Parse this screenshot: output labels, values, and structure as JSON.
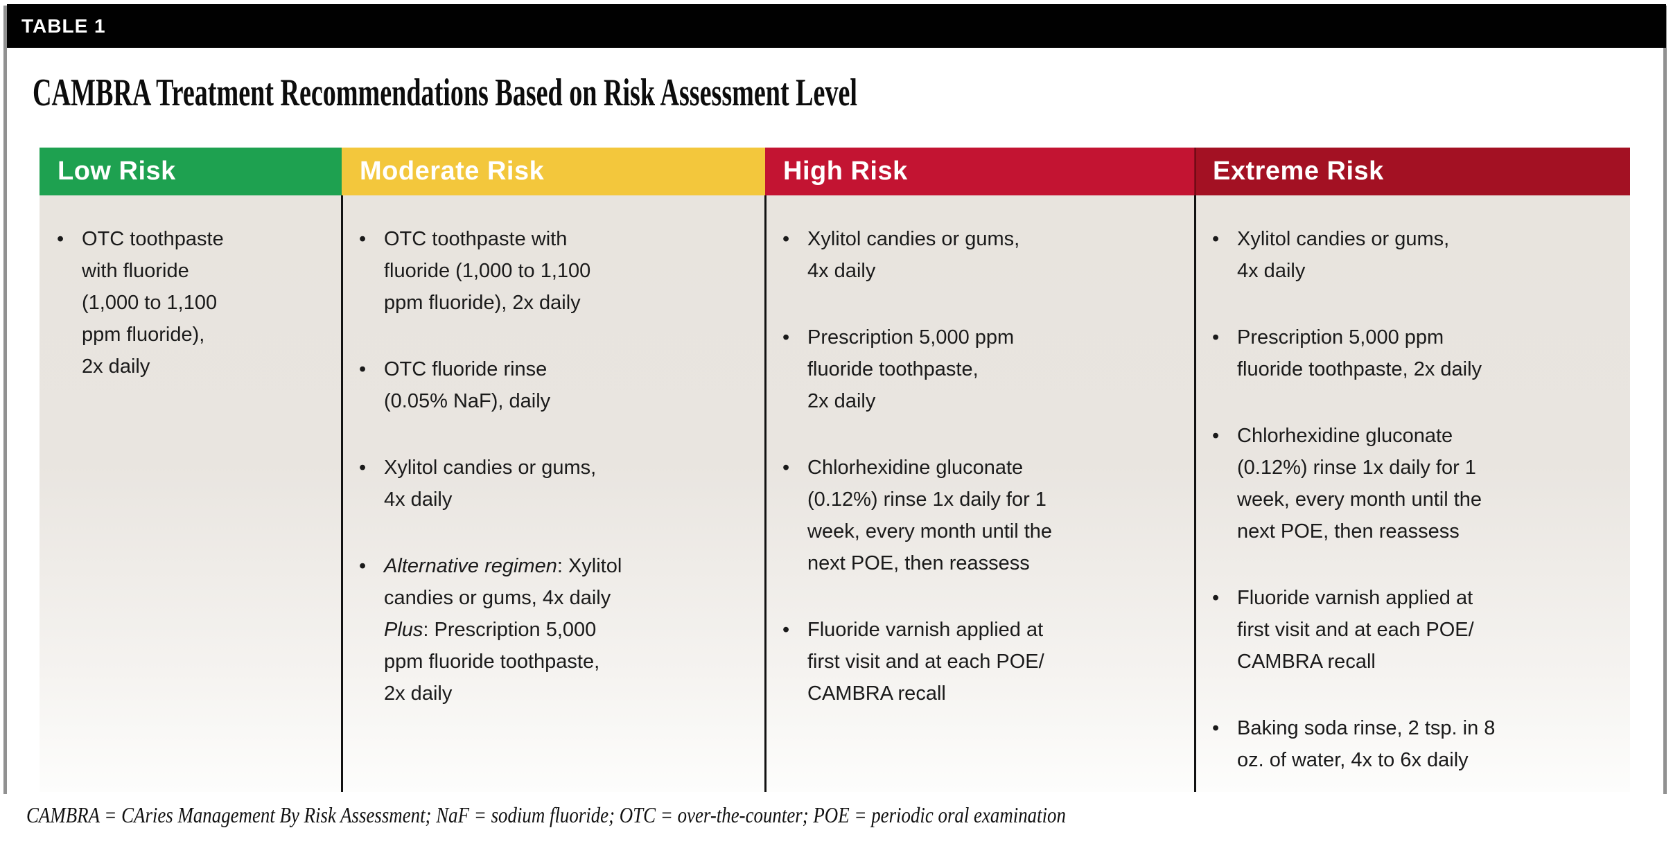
{
  "page": {
    "table_label": "TABLE 1",
    "title": "CAMBRA Treatment Recommendations Based on Risk Assessment Level",
    "footnote": "CAMBRA = CAries Management By Risk Assessment; NaF = sodium fluoride; OTC = over-the-counter; POE = periodic oral examination",
    "bullet_char": "•"
  },
  "colors": {
    "low_risk_green": "#1EA150",
    "moderate_risk_yellow": "#F3C73C",
    "high_risk_red": "#C31432",
    "extreme_risk_dark_red": "#A31123",
    "header_text": "#FFFFFF",
    "cell_background_top": "#E8E4DE",
    "cell_background_bottom": "#FDFDFC",
    "divider": "#121212",
    "table_label_bar": "#010101"
  },
  "columns": [
    {
      "header": "Low Risk",
      "header_color": "#1EA150",
      "items": [
        {
          "segments": [
            {
              "text": "OTC toothpaste\nwith fluoride\n(1,000 to 1,100\nppm fluoride),\n2x daily"
            }
          ]
        }
      ]
    },
    {
      "header": "Moderate Risk",
      "header_color": "#F3C73C",
      "items": [
        {
          "segments": [
            {
              "text": "OTC toothpaste with\nfluoride (1,000 to 1,100\nppm fluoride), 2x daily"
            }
          ]
        },
        {
          "segments": [
            {
              "text": "OTC fluoride rinse\n(0.05% NaF), daily"
            }
          ]
        },
        {
          "segments": [
            {
              "text": "Xylitol candies or gums,\n4x daily"
            }
          ]
        },
        {
          "segments": [
            {
              "text": "Alternative regimen",
              "italic": true
            },
            {
              "text": ": Xylitol\ncandies or gums, 4x daily\n"
            },
            {
              "text": "Plus",
              "italic": true
            },
            {
              "text": ": Prescription 5,000\nppm fluoride toothpaste,\n2x daily"
            }
          ]
        }
      ]
    },
    {
      "header": "High Risk",
      "header_color": "#C31432",
      "items": [
        {
          "segments": [
            {
              "text": "Xylitol candies or gums,\n4x daily"
            }
          ]
        },
        {
          "segments": [
            {
              "text": "Prescription 5,000 ppm\nfluoride toothpaste,\n2x daily"
            }
          ]
        },
        {
          "segments": [
            {
              "text": "Chlorhexidine gluconate\n(0.12%) rinse 1x daily for 1\nweek, every month until the\nnext POE, then reassess"
            }
          ]
        },
        {
          "segments": [
            {
              "text": "Fluoride varnish applied at\nfirst visit and at each POE/\nCAMBRA recall"
            }
          ]
        }
      ]
    },
    {
      "header": "Extreme Risk",
      "header_color": "#A31123",
      "items": [
        {
          "segments": [
            {
              "text": "Xylitol candies or gums,\n4x daily"
            }
          ]
        },
        {
          "segments": [
            {
              "text": "Prescription 5,000 ppm\nfluoride toothpaste, 2x daily"
            }
          ]
        },
        {
          "segments": [
            {
              "text": "Chlorhexidine gluconate\n(0.12%) rinse 1x daily for 1\nweek, every month until the\nnext POE, then reassess"
            }
          ]
        },
        {
          "segments": [
            {
              "text": "Fluoride varnish applied at\nfirst visit and at each POE/\nCAMBRA recall"
            }
          ]
        },
        {
          "segments": [
            {
              "text": "Baking soda rinse, 2 tsp. in 8\noz. of water, 4x to 6x daily"
            }
          ]
        }
      ]
    }
  ]
}
